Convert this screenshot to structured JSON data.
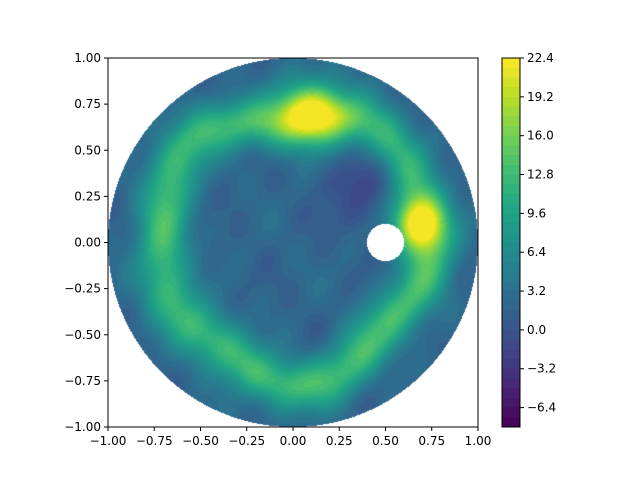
{
  "chart_data": {
    "type": "heatmap",
    "subtype": "filled-contour on annulus (disk with circular hole)",
    "title": "",
    "xlabel": "",
    "ylabel": "",
    "xlim": [
      -1.0,
      1.0
    ],
    "ylim": [
      -1.0,
      1.0
    ],
    "x_ticks": [
      -1.0,
      -0.75,
      -0.5,
      -0.25,
      0.0,
      0.25,
      0.5,
      0.75,
      1.0
    ],
    "x_tick_labels": [
      "−1.00",
      "−0.75",
      "−0.50",
      "−0.25",
      "0.00",
      "0.25",
      "0.50",
      "0.75",
      "1.00"
    ],
    "y_ticks": [
      1.0,
      0.75,
      0.5,
      0.25,
      0.0,
      -0.25,
      -0.5,
      -0.75,
      -1.0
    ],
    "y_tick_labels": [
      "1.00",
      "0.75",
      "0.50",
      "0.25",
      "0.00",
      "−0.25",
      "−0.50",
      "−0.75",
      "−1.00"
    ],
    "grid": false,
    "colormap": "viridis",
    "domain": {
      "outer_circle": {
        "center": [
          0.0,
          0.0
        ],
        "radius": 1.0
      },
      "hole": {
        "center": [
          0.5,
          0.0
        ],
        "radius": 0.1
      }
    },
    "features": [
      {
        "kind": "ring",
        "center": [
          0.0,
          0.0
        ],
        "radius": 0.72,
        "width": 0.14,
        "value": 13.0
      },
      {
        "kind": "spot",
        "center": [
          0.1,
          0.7
        ],
        "radius": 0.18,
        "value": 20.0
      },
      {
        "kind": "spot",
        "center": [
          0.68,
          0.1
        ],
        "radius": 0.14,
        "value": 22.0
      },
      {
        "kind": "trough",
        "center": [
          0.42,
          0.32
        ],
        "radius": 0.22,
        "value": -3.0
      },
      {
        "kind": "center",
        "center": [
          -0.05,
          -0.05
        ],
        "radius": 0.45,
        "value": 2.0
      },
      {
        "kind": "edge",
        "value": 2.0
      }
    ],
    "colorbar": {
      "min": -8.0,
      "max": 22.4,
      "ticks": [
        22.4,
        19.2,
        16.0,
        12.8,
        9.6,
        6.4,
        3.2,
        0.0,
        -3.2,
        -6.4
      ],
      "tick_labels": [
        "22.4",
        "19.2",
        "16.0",
        "12.8",
        "9.6",
        "6.4",
        "3.2",
        "0.0",
        "−3.2",
        "−6.4"
      ]
    }
  }
}
